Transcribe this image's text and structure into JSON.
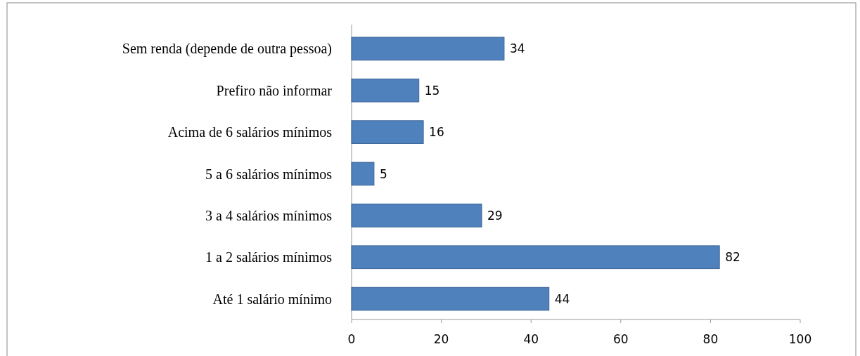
{
  "chart_data": {
    "type": "bar",
    "orientation": "horizontal",
    "categories": [
      "Sem renda (depende de outra pessoa)",
      "Prefiro não informar",
      "Acima de 6 salários mínimos",
      "5 a 6 salários mínimos",
      "3 a 4 salários mínimos",
      "1 a 2 salários mínimos",
      "Até 1 salário mínimo"
    ],
    "values": [
      34,
      15,
      16,
      5,
      29,
      82,
      44
    ],
    "color": "#4f81bd",
    "xlim": [
      0,
      100
    ],
    "xticks": [
      0,
      20,
      40,
      60,
      80,
      100
    ],
    "data_labels": true
  }
}
